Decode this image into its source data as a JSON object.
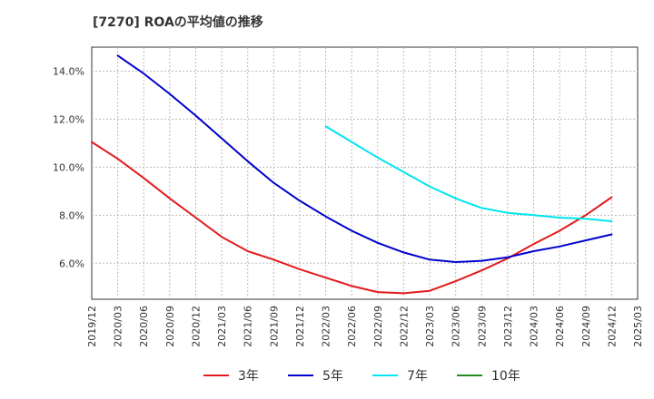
{
  "chart_data": {
    "type": "line",
    "title": "[7270]  ROAの平均値の推移",
    "x_ticks": [
      "2019/12",
      "2020/03",
      "2020/06",
      "2020/09",
      "2020/12",
      "2021/03",
      "2021/06",
      "2021/09",
      "2021/12",
      "2022/03",
      "2022/06",
      "2022/09",
      "2022/12",
      "2023/03",
      "2023/06",
      "2023/09",
      "2023/12",
      "2024/03",
      "2024/06",
      "2024/09",
      "2024/12",
      "2025/03"
    ],
    "y_ticks": [
      "6.0%",
      "8.0%",
      "10.0%",
      "12.0%",
      "14.0%"
    ],
    "y_tick_values": [
      6,
      8,
      10,
      12,
      14
    ],
    "ylim": [
      4.5,
      15.0
    ],
    "grid": true,
    "legend_position": "bottom",
    "series": [
      {
        "name": "3年",
        "color": "#e31a1c",
        "x": [
          "2019/12",
          "2020/03",
          "2020/06",
          "2020/09",
          "2020/12",
          "2021/03",
          "2021/06",
          "2021/09",
          "2021/12",
          "2022/03",
          "2022/06",
          "2022/09",
          "2022/12",
          "2023/03",
          "2023/06",
          "2023/09",
          "2023/12",
          "2024/03",
          "2024/06",
          "2024/09",
          "2024/12"
        ],
        "values": [
          11.05,
          10.35,
          9.55,
          8.7,
          7.9,
          7.1,
          6.5,
          6.15,
          5.75,
          5.4,
          5.05,
          4.8,
          4.75,
          4.85,
          5.25,
          5.7,
          6.2,
          6.8,
          7.35,
          8.0,
          8.75
        ]
      },
      {
        "name": "5年",
        "color": "#0000cc",
        "x": [
          "2020/03",
          "2020/06",
          "2020/09",
          "2020/12",
          "2021/03",
          "2021/06",
          "2021/09",
          "2021/12",
          "2022/03",
          "2022/06",
          "2022/09",
          "2022/12",
          "2023/03",
          "2023/06",
          "2023/09",
          "2023/12",
          "2024/03",
          "2024/06",
          "2024/09",
          "2024/12"
        ],
        "values": [
          14.65,
          13.9,
          13.05,
          12.15,
          11.2,
          10.25,
          9.35,
          8.6,
          7.95,
          7.35,
          6.85,
          6.45,
          6.15,
          6.05,
          6.1,
          6.25,
          6.5,
          6.7,
          6.95,
          7.2
        ]
      },
      {
        "name": "7年",
        "color": "#00e5ee",
        "x": [
          "2022/03",
          "2022/06",
          "2022/09",
          "2022/12",
          "2023/03",
          "2023/06",
          "2023/09",
          "2023/12",
          "2024/03",
          "2024/06",
          "2024/09",
          "2024/12"
        ],
        "values": [
          11.7,
          11.05,
          10.4,
          9.8,
          9.2,
          8.7,
          8.3,
          8.1,
          8.0,
          7.9,
          7.85,
          7.75
        ]
      },
      {
        "name": "10年",
        "color": "#228b22",
        "x": [],
        "values": []
      }
    ]
  }
}
